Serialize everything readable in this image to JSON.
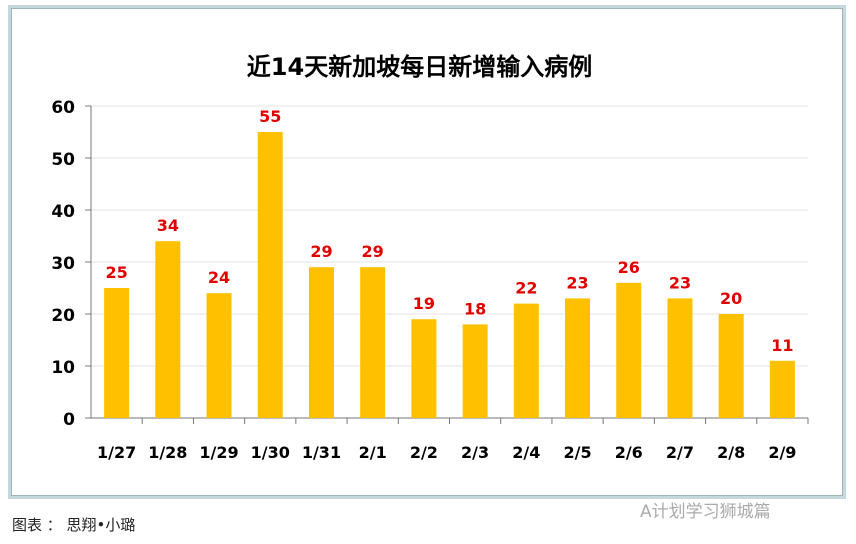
{
  "chart_data": {
    "type": "bar",
    "title": "近14天新加坡每日新增输入病例",
    "categories": [
      "1/27",
      "1/28",
      "1/29",
      "1/30",
      "1/31",
      "2/1",
      "2/2",
      "2/3",
      "2/4",
      "2/5",
      "2/6",
      "2/7",
      "2/8",
      "2/9"
    ],
    "values": [
      25,
      34,
      24,
      55,
      29,
      29,
      19,
      18,
      22,
      23,
      26,
      23,
      20,
      11
    ],
    "ylim": [
      0,
      60
    ],
    "yticks": [
      0,
      10,
      20,
      30,
      40,
      50,
      60
    ],
    "grid": true,
    "bar_color": "#FFC000",
    "label_color": "#E00000",
    "xlabel": "",
    "ylabel": ""
  },
  "caption": "图表 ： 思翔•小璐",
  "watermark": "A计划学习狮城篇"
}
